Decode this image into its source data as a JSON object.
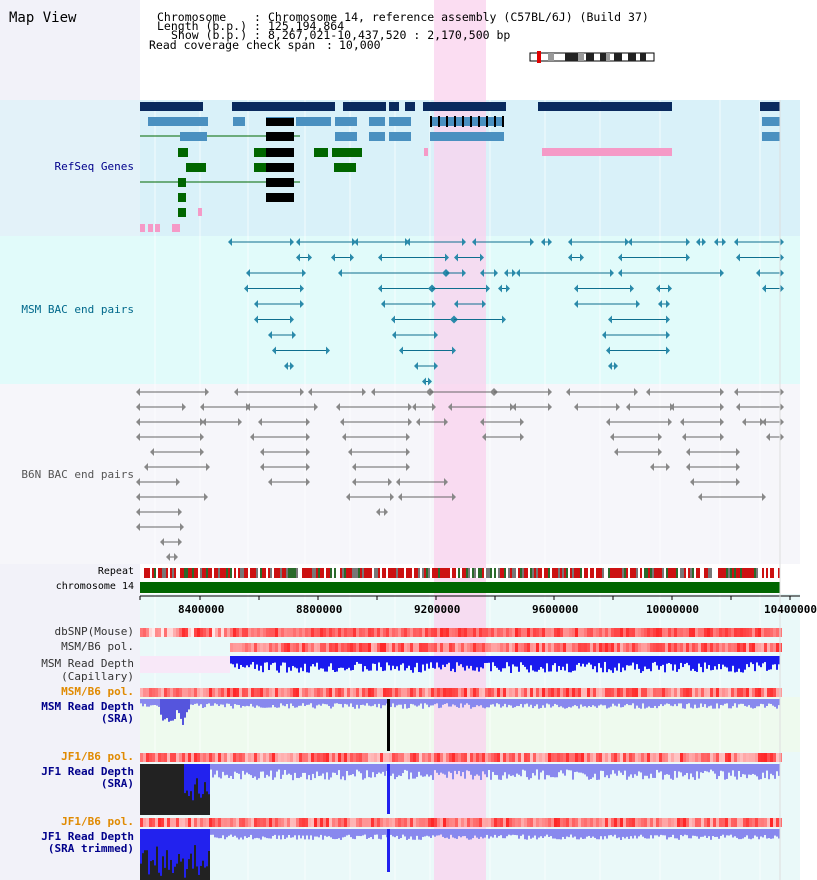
{
  "page": {
    "title": "Map View"
  },
  "header": {
    "chromosome_key": "Chromosome",
    "chromosome_val": "Chromosome 14, reference assembly (C57BL/6J) (Build 37)",
    "length_key": "Length (b.p.)",
    "length_val": "125,194,864",
    "show_key": "Show (b.p.)",
    "show_val": "8,267,021-10,437,520 : 2,170,500 bp",
    "coverage_key": "Read coverage check span",
    "coverage_val": "10,000"
  },
  "tracks": {
    "refseq": "RefSeq Genes",
    "msm_bac": "MSM BAC end pairs",
    "b6n_bac": "B6N BAC end pairs",
    "repeat": "Repeat",
    "chromosome": "chromosome 14"
  },
  "axis": {
    "ticks": [
      "8400000",
      "8800000",
      "9200000",
      "9600000",
      "10000000",
      "10400000"
    ]
  },
  "lower_tracks": {
    "dbsnp": "dbSNP(Mouse)",
    "msm_b6_pol_1": "MSM/B6 pol.",
    "msm_read_depth_cap_1": "MSM Read Depth",
    "msm_read_depth_cap_2": "(Capillary)",
    "msm_b6_pol_2": "MSM/B6 pol.",
    "msm_read_depth_sra_1": "MSM Read Depth",
    "msm_read_depth_sra_2": "(SRA)",
    "jf1_b6_pol_1": "JF1/B6 pol.",
    "jf1_read_depth_sra_1": "JF1 Read Depth",
    "jf1_read_depth_sra_2": "(SRA)",
    "jf1_b6_pol_2": "JF1/B6 pol.",
    "jf1_read_depth_trim_1": "JF1 Read Depth",
    "jf1_read_depth_trim_2": "(SRA trimmed)"
  },
  "colors": {
    "navy": "#0a2a5e",
    "refseq_blue": "#4a90c0",
    "green": "#006600",
    "pink": "#f59ac7",
    "highlight": "#ffd6f0",
    "label_blue": "#00008b",
    "label_teal": "#00688b",
    "label_gray": "#555555",
    "label_orange": "#e08a00"
  }
}
